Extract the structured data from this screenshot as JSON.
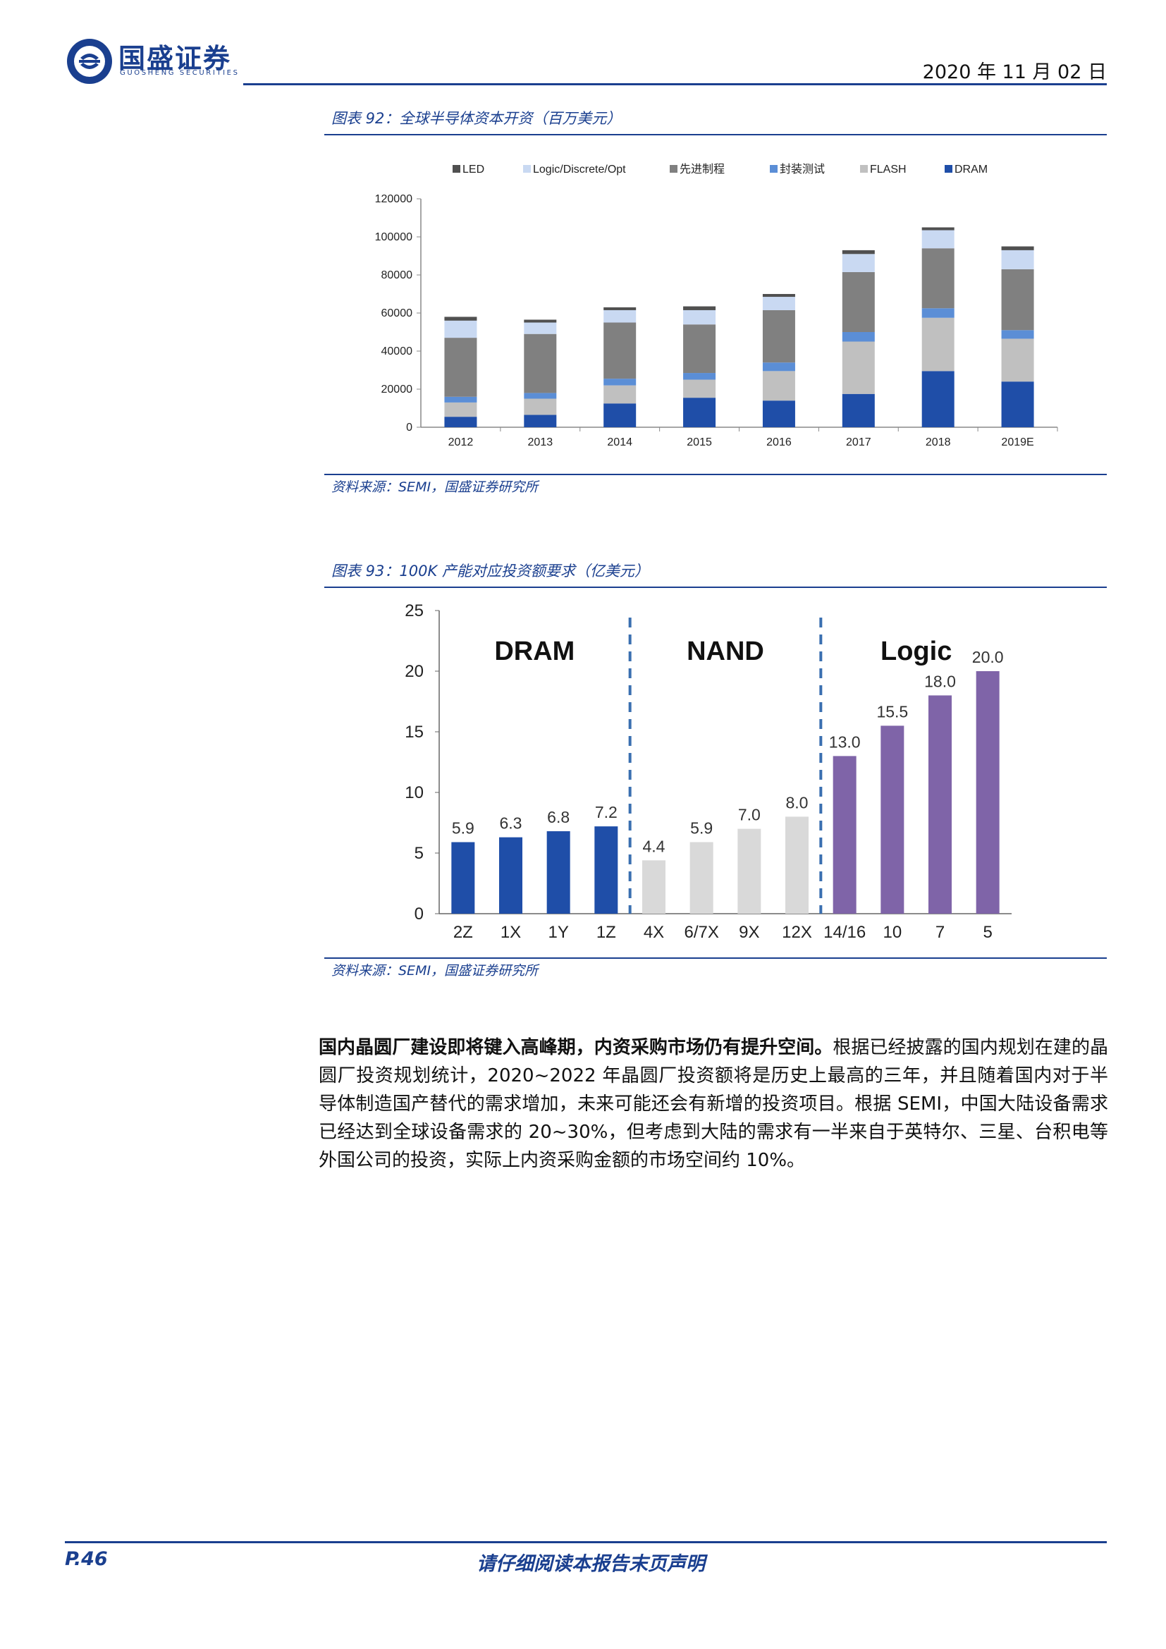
{
  "header": {
    "brand_cn": "国盛证券",
    "brand_en": "GUOSHENG SECURITIES",
    "date": "2020 年 11 月 02 日"
  },
  "figure92": {
    "title": "图表 92：全球半导体资本开资（百万美元）",
    "source": "资料来源：SEMI，国盛证券研究所"
  },
  "figure93": {
    "title": "图表 93：100K 产能对应投资额要求（亿美元）",
    "source": "资料来源：SEMI，国盛证券研究所"
  },
  "paragraph": {
    "bold": "国内晶圆厂建设即将键入高峰期，内资采购市场仍有提升空间。",
    "text": "根据已经披露的国内规划在建的晶圆厂投资规划统计，2020~2022 年晶圆厂投资额将是历史上最高的三年，并且随着国内对于半导体制造国产替代的需求增加，未来可能还会有新增的投资项目。根据 SEMI，中国大陆设备需求已经达到全球设备需求的 20~30%，但考虑到大陆的需求有一半来自于英特尔、三星、台积电等外国公司的投资，实际上内资采购金额的市场空间约 10%。"
  },
  "footer": {
    "page": "P.46",
    "notice": "请仔细阅读本报告末页声明"
  },
  "chart_data": [
    {
      "type": "bar",
      "stacked": true,
      "categories": [
        "2012",
        "2013",
        "2014",
        "2015",
        "2016",
        "2017",
        "2018",
        "2019E"
      ],
      "ylim": [
        0,
        120000
      ],
      "yticks": [
        0,
        20000,
        40000,
        60000,
        80000,
        100000,
        120000
      ],
      "legend_position": "top",
      "series": [
        {
          "name": "DRAM",
          "color": "#1f4ea8",
          "values": [
            5500,
            6500,
            12500,
            15500,
            14000,
            17500,
            29500,
            24000
          ]
        },
        {
          "name": "FLASH",
          "color": "#c0c0c0",
          "values": [
            7500,
            8500,
            9500,
            9500,
            15500,
            27500,
            28000,
            22500
          ]
        },
        {
          "name": "封装测试",
          "color": "#5b8ed6",
          "values": [
            3000,
            3000,
            3500,
            3500,
            4500,
            5000,
            5000,
            4500
          ]
        },
        {
          "name": "先进制程",
          "color": "#808080",
          "values": [
            31000,
            31000,
            29500,
            25500,
            27500,
            31500,
            31500,
            32000
          ]
        },
        {
          "name": "Logic/Discrete/Opt",
          "color": "#c9d9f2",
          "values": [
            9000,
            6000,
            6500,
            7500,
            7000,
            9500,
            9500,
            10000
          ]
        },
        {
          "name": "LED",
          "color": "#505050",
          "values": [
            2000,
            1500,
            1500,
            2000,
            1500,
            2000,
            1500,
            2000
          ]
        }
      ],
      "legend_order": [
        "LED",
        "Logic/Discrete/Opt",
        "先进制程",
        "封装测试",
        "FLASH",
        "DRAM"
      ]
    },
    {
      "type": "bar",
      "categories": [
        "2Z",
        "1X",
        "1Y",
        "1Z",
        "4X",
        "6/7X",
        "9X",
        "12X",
        "14/16",
        "10",
        "7",
        "5"
      ],
      "values": [
        5.9,
        6.3,
        6.8,
        7.2,
        4.4,
        5.9,
        7.0,
        8.0,
        13.0,
        15.5,
        18.0,
        20.0
      ],
      "value_labels": [
        "5.9",
        "6.3",
        "6.8",
        "7.2",
        "4.4",
        "5.9",
        "7.0",
        "8.0",
        "13.0",
        "15.5",
        "18.0",
        "20.0"
      ],
      "groups": [
        {
          "name": "DRAM",
          "color": "#1f4ea8",
          "count": 4
        },
        {
          "name": "NAND",
          "color": "#d9d9d9",
          "count": 4
        },
        {
          "name": "Logic",
          "color": "#7f64a8",
          "count": 4
        }
      ],
      "ylim": [
        0,
        25
      ],
      "yticks": [
        0,
        5,
        10,
        15,
        20,
        25
      ]
    }
  ]
}
